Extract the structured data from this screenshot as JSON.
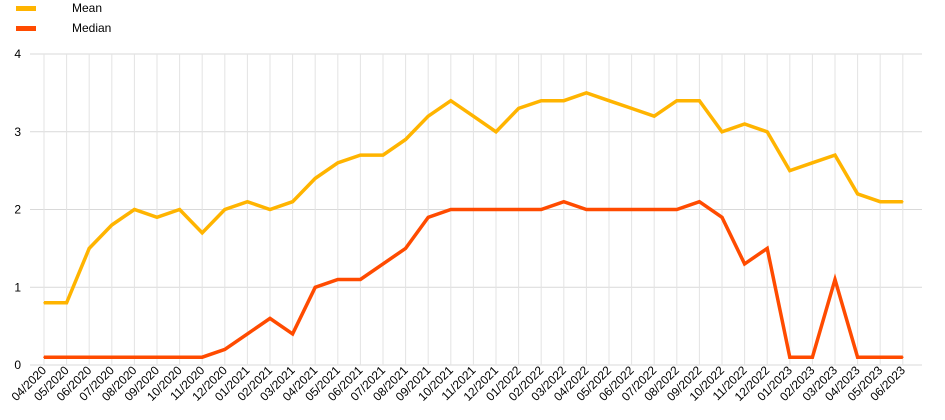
{
  "chart_data": {
    "type": "line",
    "title": "",
    "xlabel": "",
    "ylabel": "",
    "ylim": [
      0,
      4
    ],
    "yticks": [
      "0",
      "1",
      "2",
      "3",
      "4"
    ],
    "grid": true,
    "legend_position": "top-left",
    "categories": [
      "04/2020",
      "05/2020",
      "06/2020",
      "07/2020",
      "08/2020",
      "09/2020",
      "10/2020",
      "11/2020",
      "12/2020",
      "01/2021",
      "02/2021",
      "03/2021",
      "04/2021",
      "05/2021",
      "06/2021",
      "07/2021",
      "08/2021",
      "09/2021",
      "10/2021",
      "11/2021",
      "12/2021",
      "01/2022",
      "02/2022",
      "03/2022",
      "04/2022",
      "05/2022",
      "06/2022",
      "07/2022",
      "08/2022",
      "09/2022",
      "10/2022",
      "11/2022",
      "12/2022",
      "01/2023",
      "02/2023",
      "03/2023",
      "04/2023",
      "05/2023",
      "06/2023"
    ],
    "series": [
      {
        "name": "Mean",
        "color": "#FFB400",
        "values": [
          0.8,
          0.8,
          1.5,
          1.8,
          2.0,
          1.9,
          2.0,
          1.7,
          2.0,
          2.1,
          2.0,
          2.1,
          2.4,
          2.6,
          2.7,
          2.7,
          2.9,
          3.2,
          3.4,
          3.2,
          3.0,
          3.3,
          3.4,
          3.4,
          3.5,
          3.4,
          3.3,
          3.2,
          3.4,
          3.4,
          3.0,
          3.1,
          3.0,
          2.5,
          2.6,
          2.7,
          2.2,
          2.1,
          2.1
        ]
      },
      {
        "name": "Median",
        "color": "#FF4B00",
        "values": [
          0.1,
          0.1,
          0.1,
          0.1,
          0.1,
          0.1,
          0.1,
          0.1,
          0.2,
          0.4,
          0.6,
          0.4,
          1.0,
          1.1,
          1.1,
          1.3,
          1.5,
          1.9,
          2.0,
          2.0,
          2.0,
          2.0,
          2.0,
          2.1,
          2.0,
          2.0,
          2.0,
          2.0,
          2.0,
          2.1,
          1.9,
          1.3,
          1.5,
          0.1,
          0.1,
          1.1,
          0.1,
          0.1,
          0.1
        ]
      }
    ]
  }
}
